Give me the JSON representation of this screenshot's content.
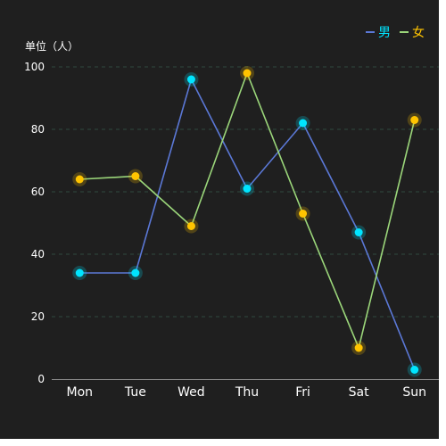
{
  "chart_data": {
    "type": "line",
    "ylabel": "单位（人）",
    "ylim": [
      0,
      100
    ],
    "yticks": [
      "0",
      "20",
      "40",
      "60",
      "80",
      "100"
    ],
    "categories": [
      "Mon",
      "Tue",
      "Wed",
      "Thu",
      "Fri",
      "Sat",
      "Sun"
    ],
    "series": [
      {
        "name": "男",
        "values": [
          34,
          34,
          96,
          61,
          82,
          47,
          3
        ],
        "line_color": "#5b78d6",
        "point_color": "#00e5ff",
        "legend_text_color": "#00e5ff"
      },
      {
        "name": "女",
        "values": [
          64,
          65,
          49,
          98,
          53,
          10,
          83
        ],
        "line_color": "#9bd67a",
        "point_color": "#ffc400",
        "legend_text_color": "#ffc400"
      }
    ],
    "legend_position": "top-right",
    "grid": "dashed-horizontal",
    "grid_color": "#2f4a3f"
  }
}
